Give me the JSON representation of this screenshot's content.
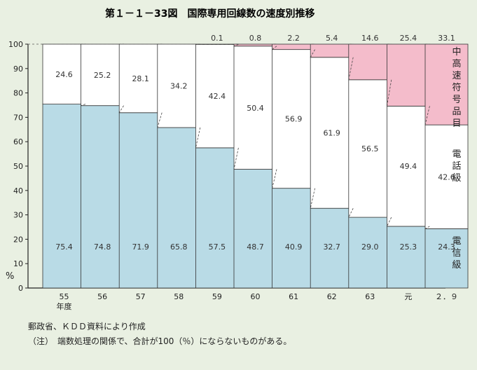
{
  "header": {
    "title": "第１－１－33図　国際専用回線数の速度別推移"
  },
  "chart_data": {
    "type": "bar",
    "stacked": true,
    "categories": [
      "55",
      "56",
      "57",
      "58",
      "59",
      "60",
      "61",
      "62",
      "63",
      "元",
      "２．９"
    ],
    "category_axis_label": "年度",
    "y_unit": "%",
    "ylim": [
      0,
      100
    ],
    "yticks": [
      0,
      10,
      20,
      30,
      40,
      50,
      60,
      70,
      80,
      90,
      100
    ],
    "grid": false,
    "series": [
      {
        "name": "電信級",
        "color": "#b9dbe6",
        "values": [
          75.4,
          74.8,
          71.9,
          65.8,
          57.5,
          48.7,
          40.9,
          32.7,
          29.0,
          25.3,
          24.3
        ]
      },
      {
        "name": "電話級",
        "color": "#ffffff",
        "values": [
          24.6,
          25.2,
          28.1,
          34.2,
          42.4,
          50.4,
          56.9,
          61.9,
          56.5,
          49.4,
          42.6
        ]
      },
      {
        "name": "中高速符号品目",
        "color": "#f4bccb",
        "values": [
          0,
          0,
          0,
          0,
          0.1,
          0.8,
          2.2,
          5.4,
          14.6,
          25.4,
          33.1
        ]
      }
    ],
    "top_labels": [
      "",
      "",
      "",
      "",
      "0.1",
      "0.8",
      "2.2",
      "5.4",
      "14.6",
      "25.4",
      "33.1"
    ],
    "mid_labels": [
      "24.6",
      "25.2",
      "28.1",
      "34.2",
      "42.4",
      "50.4",
      "56.9",
      "61.9",
      "56.5",
      "49.4",
      "42.6"
    ],
    "bottom_labels": [
      "75.4",
      "74.8",
      "71.9",
      "65.8",
      "57.5",
      "48.7",
      "40.9",
      "32.7",
      "29.0",
      "25.3",
      "24.3"
    ],
    "legend": [
      {
        "label": "中高速符号品目",
        "chars": [
          "中",
          "高",
          "速",
          "符",
          "号",
          "品",
          "目"
        ]
      },
      {
        "label": "電話級",
        "chars": [
          "電",
          "話",
          "級"
        ]
      },
      {
        "label": "電信級",
        "chars": [
          "電",
          "信",
          "級"
        ]
      }
    ]
  },
  "footer": {
    "source": "郵政省、ＫＤＤ資料により作成",
    "note": "（注）　端数処理の関係で、合計が100（％）にならないものがある。"
  }
}
